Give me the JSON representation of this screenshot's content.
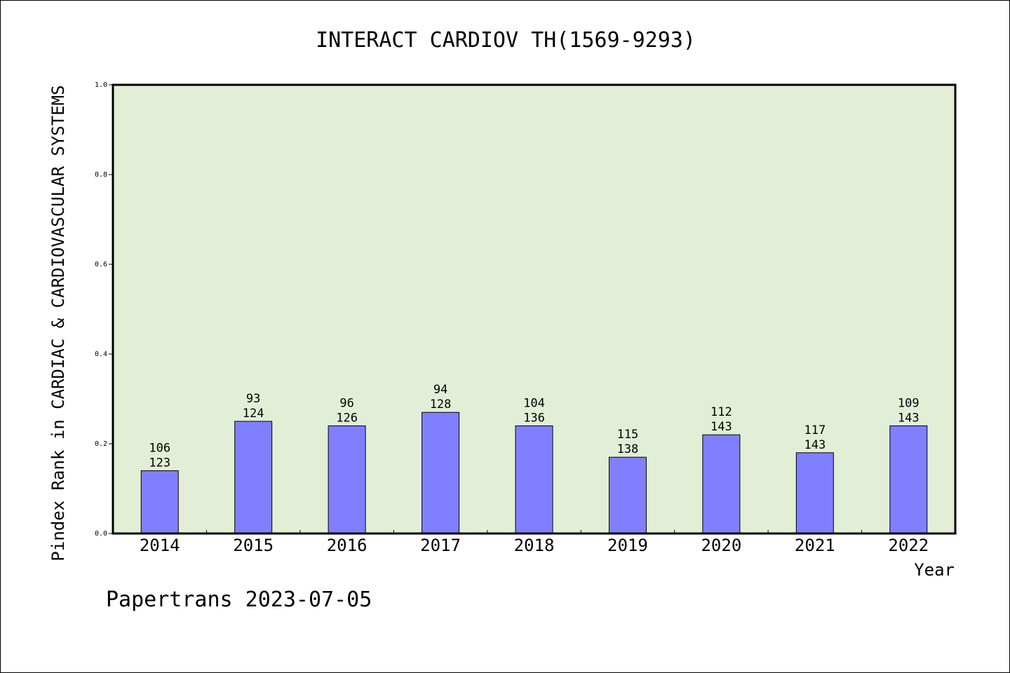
{
  "chart_data": {
    "type": "bar",
    "title": "INTERACT CARDIOV TH(1569-9293)",
    "xlabel": "Year",
    "ylabel": "Pindex Rank in CARDIAC & CARDIOVASCULAR SYSTEMS",
    "categories": [
      "2014",
      "2015",
      "2016",
      "2017",
      "2018",
      "2019",
      "2020",
      "2021",
      "2022"
    ],
    "values": [
      0.14,
      0.25,
      0.24,
      0.27,
      0.24,
      0.17,
      0.22,
      0.18,
      0.24
    ],
    "rank": [
      "106",
      "93",
      "96",
      "94",
      "104",
      "115",
      "112",
      "117",
      "109"
    ],
    "total": [
      "123",
      "124",
      "126",
      "128",
      "136",
      "138",
      "143",
      "143",
      "143"
    ],
    "ylim": [
      0,
      1.0
    ],
    "yticks": [
      "0.0",
      "0.2",
      "0.4",
      "0.6",
      "0.8",
      "1.0"
    ],
    "grid": false,
    "colors": {
      "bar": "#8080ff",
      "plot_bg": "#e2efd6"
    }
  },
  "footer": "Papertrans 2023-07-05"
}
